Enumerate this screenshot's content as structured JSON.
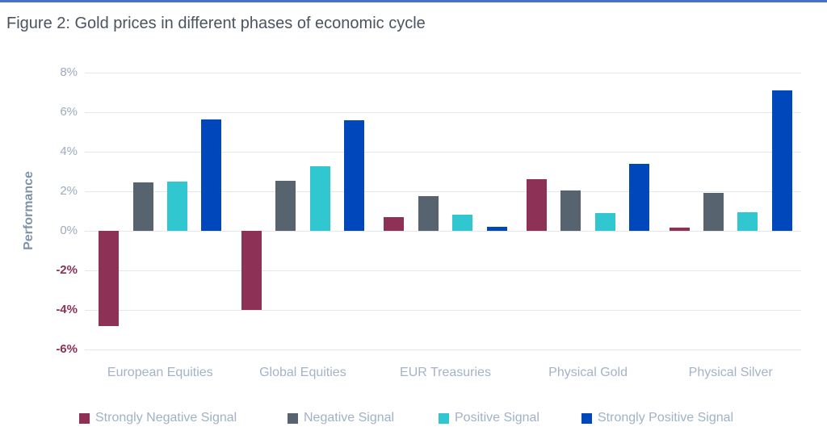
{
  "title": "Figure 2: Gold prices in different phases of economic cycle",
  "colors": {
    "accent_top_line": "#4472c4",
    "title_text": "#4b545e",
    "gridline": "#e4e7ea",
    "tick_positive": "#9dabbf",
    "tick_negative": "#8e3157",
    "axis_title": "#7e93aa",
    "category_label": "#a4b3c7",
    "legend_text": "#9fb2c8"
  },
  "chart_data": {
    "type": "bar",
    "title": "Figure 2: Gold prices in different phases of economic cycle",
    "xlabel": "",
    "ylabel": "Performance",
    "categories": [
      "European Equities",
      "Global Equities",
      "EUR Treasuries",
      "Physical Gold",
      "Physical Silver"
    ],
    "series": [
      {
        "name": "Strongly Negative Signal",
        "color": "#8e3157",
        "values": [
          -4.8,
          -4.0,
          0.7,
          2.6,
          0.15
        ]
      },
      {
        "name": "Negative Signal",
        "color": "#57636e",
        "values": [
          2.45,
          2.55,
          1.75,
          2.05,
          1.9
        ]
      },
      {
        "name": "Positive Signal",
        "color": "#31c7d1",
        "values": [
          2.5,
          3.25,
          0.8,
          0.9,
          0.95
        ]
      },
      {
        "name": "Strongly Positive Signal",
        "color": "#0047bb",
        "values": [
          5.65,
          5.6,
          0.2,
          3.4,
          7.1
        ]
      }
    ],
    "ylim": [
      -6,
      8
    ],
    "ytick_step": 2,
    "ytick_labels": [
      "8%",
      "6%",
      "4%",
      "2%",
      "0%",
      "-2%",
      "-4%",
      "-6%"
    ],
    "grid": true,
    "legend_position": "bottom"
  }
}
